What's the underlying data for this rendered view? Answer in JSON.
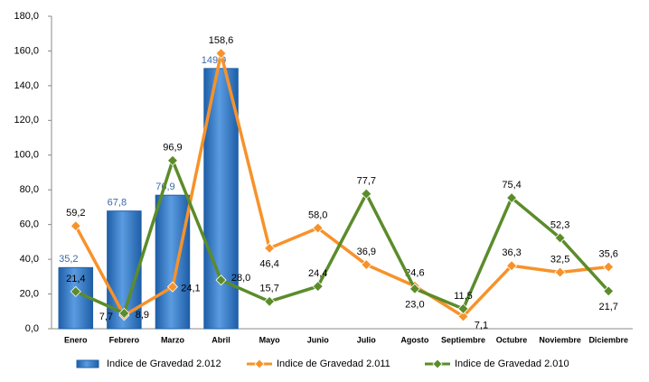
{
  "chart_data": {
    "type": "bar-line",
    "categories": [
      "Enero",
      "Febrero",
      "Marzo",
      "Abril",
      "Mayo",
      "Junio",
      "Julio",
      "Agosto",
      "Septiembre",
      "Octubre",
      "Noviembre",
      "Diciembre"
    ],
    "series": [
      {
        "name": "Indice de Gravedad 2.012",
        "kind": "bar",
        "color": "#3c7fcc",
        "values": [
          35.2,
          67.8,
          76.9,
          149.9,
          null,
          null,
          null,
          null,
          null,
          null,
          null,
          null
        ],
        "value_labels": [
          "35,2",
          "67,8",
          "76,9",
          "149,9",
          null,
          null,
          null,
          null,
          null,
          null,
          null,
          null
        ]
      },
      {
        "name": "Indice de Gravedad 2.011",
        "kind": "line",
        "color": "#f7922a",
        "values": [
          59.2,
          7.7,
          24.1,
          158.6,
          46.4,
          58.0,
          36.9,
          24.6,
          7.1,
          36.3,
          32.5,
          35.6
        ],
        "value_labels": [
          "59,2",
          "7,7",
          "24,1",
          "158,6",
          "46,4",
          "58,0",
          "36,9",
          "24,6",
          "7,1",
          "36,3",
          "32,5",
          "35,6"
        ]
      },
      {
        "name": "Indice de Gravedad 2.010",
        "kind": "line",
        "color": "#5b8c2a",
        "values": [
          21.4,
          8.9,
          96.9,
          28.0,
          15.7,
          24.4,
          77.7,
          23.0,
          11.5,
          75.4,
          52.3,
          21.7
        ],
        "value_labels": [
          "21,4",
          "8,9",
          "96,9",
          "28,0",
          "15,7",
          "24,4",
          "77,7",
          "23,0",
          "11,5",
          "75,4",
          "52,3",
          "21,7"
        ]
      }
    ],
    "ylim": [
      0,
      180
    ],
    "yticks": [
      {
        "value": 0,
        "label": "0,0"
      },
      {
        "value": 20,
        "label": "20,0"
      },
      {
        "value": 40,
        "label": "40,0"
      },
      {
        "value": 60,
        "label": "60,0"
      },
      {
        "value": 80,
        "label": "80,0"
      },
      {
        "value": 100,
        "label": "100,0"
      },
      {
        "value": 120,
        "label": "120,0"
      },
      {
        "value": 140,
        "label": "140,0"
      },
      {
        "value": 160,
        "label": "160,0"
      },
      {
        "value": 180,
        "label": "180,0"
      }
    ],
    "grid": false,
    "legend": "bottom"
  }
}
